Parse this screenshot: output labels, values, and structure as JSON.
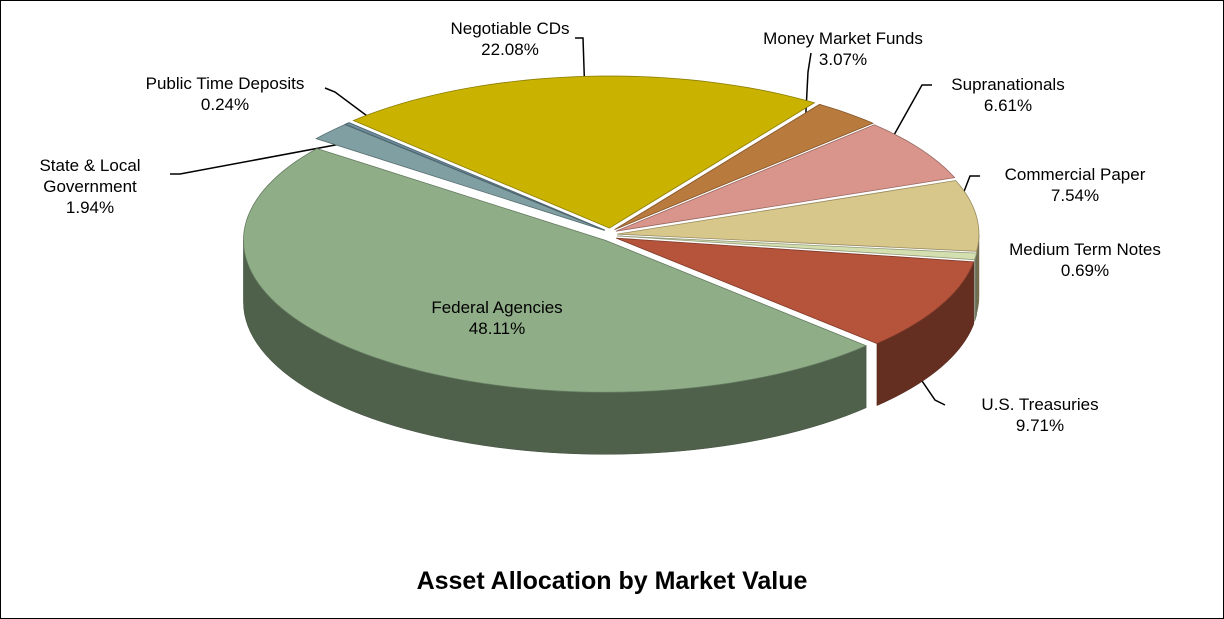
{
  "chart_data": {
    "type": "pie",
    "title": "Asset Allocation by Market Value",
    "categories": [
      "Negotiable CDs",
      "Money Market Funds",
      "Supranationals",
      "Commercial Paper",
      "Medium Term Notes",
      "U.S. Treasuries",
      "Federal Agencies",
      "State & Local Government",
      "Public Time Deposits"
    ],
    "values": [
      22.08,
      3.07,
      6.61,
      7.54,
      0.69,
      9.71,
      48.11,
      1.94,
      0.24
    ],
    "value_labels": [
      "22.08%",
      "3.07%",
      "6.61%",
      "7.54%",
      "0.69%",
      "9.71%",
      "48.11%",
      "1.94%",
      "0.24%"
    ],
    "colors": [
      "#c9b300",
      "#b97a3e",
      "#d9958b",
      "#d8c78a",
      "#d4dfb0",
      "#b5533b",
      "#8fae88",
      "#7f9fa2",
      "#6d8c9c"
    ]
  }
}
